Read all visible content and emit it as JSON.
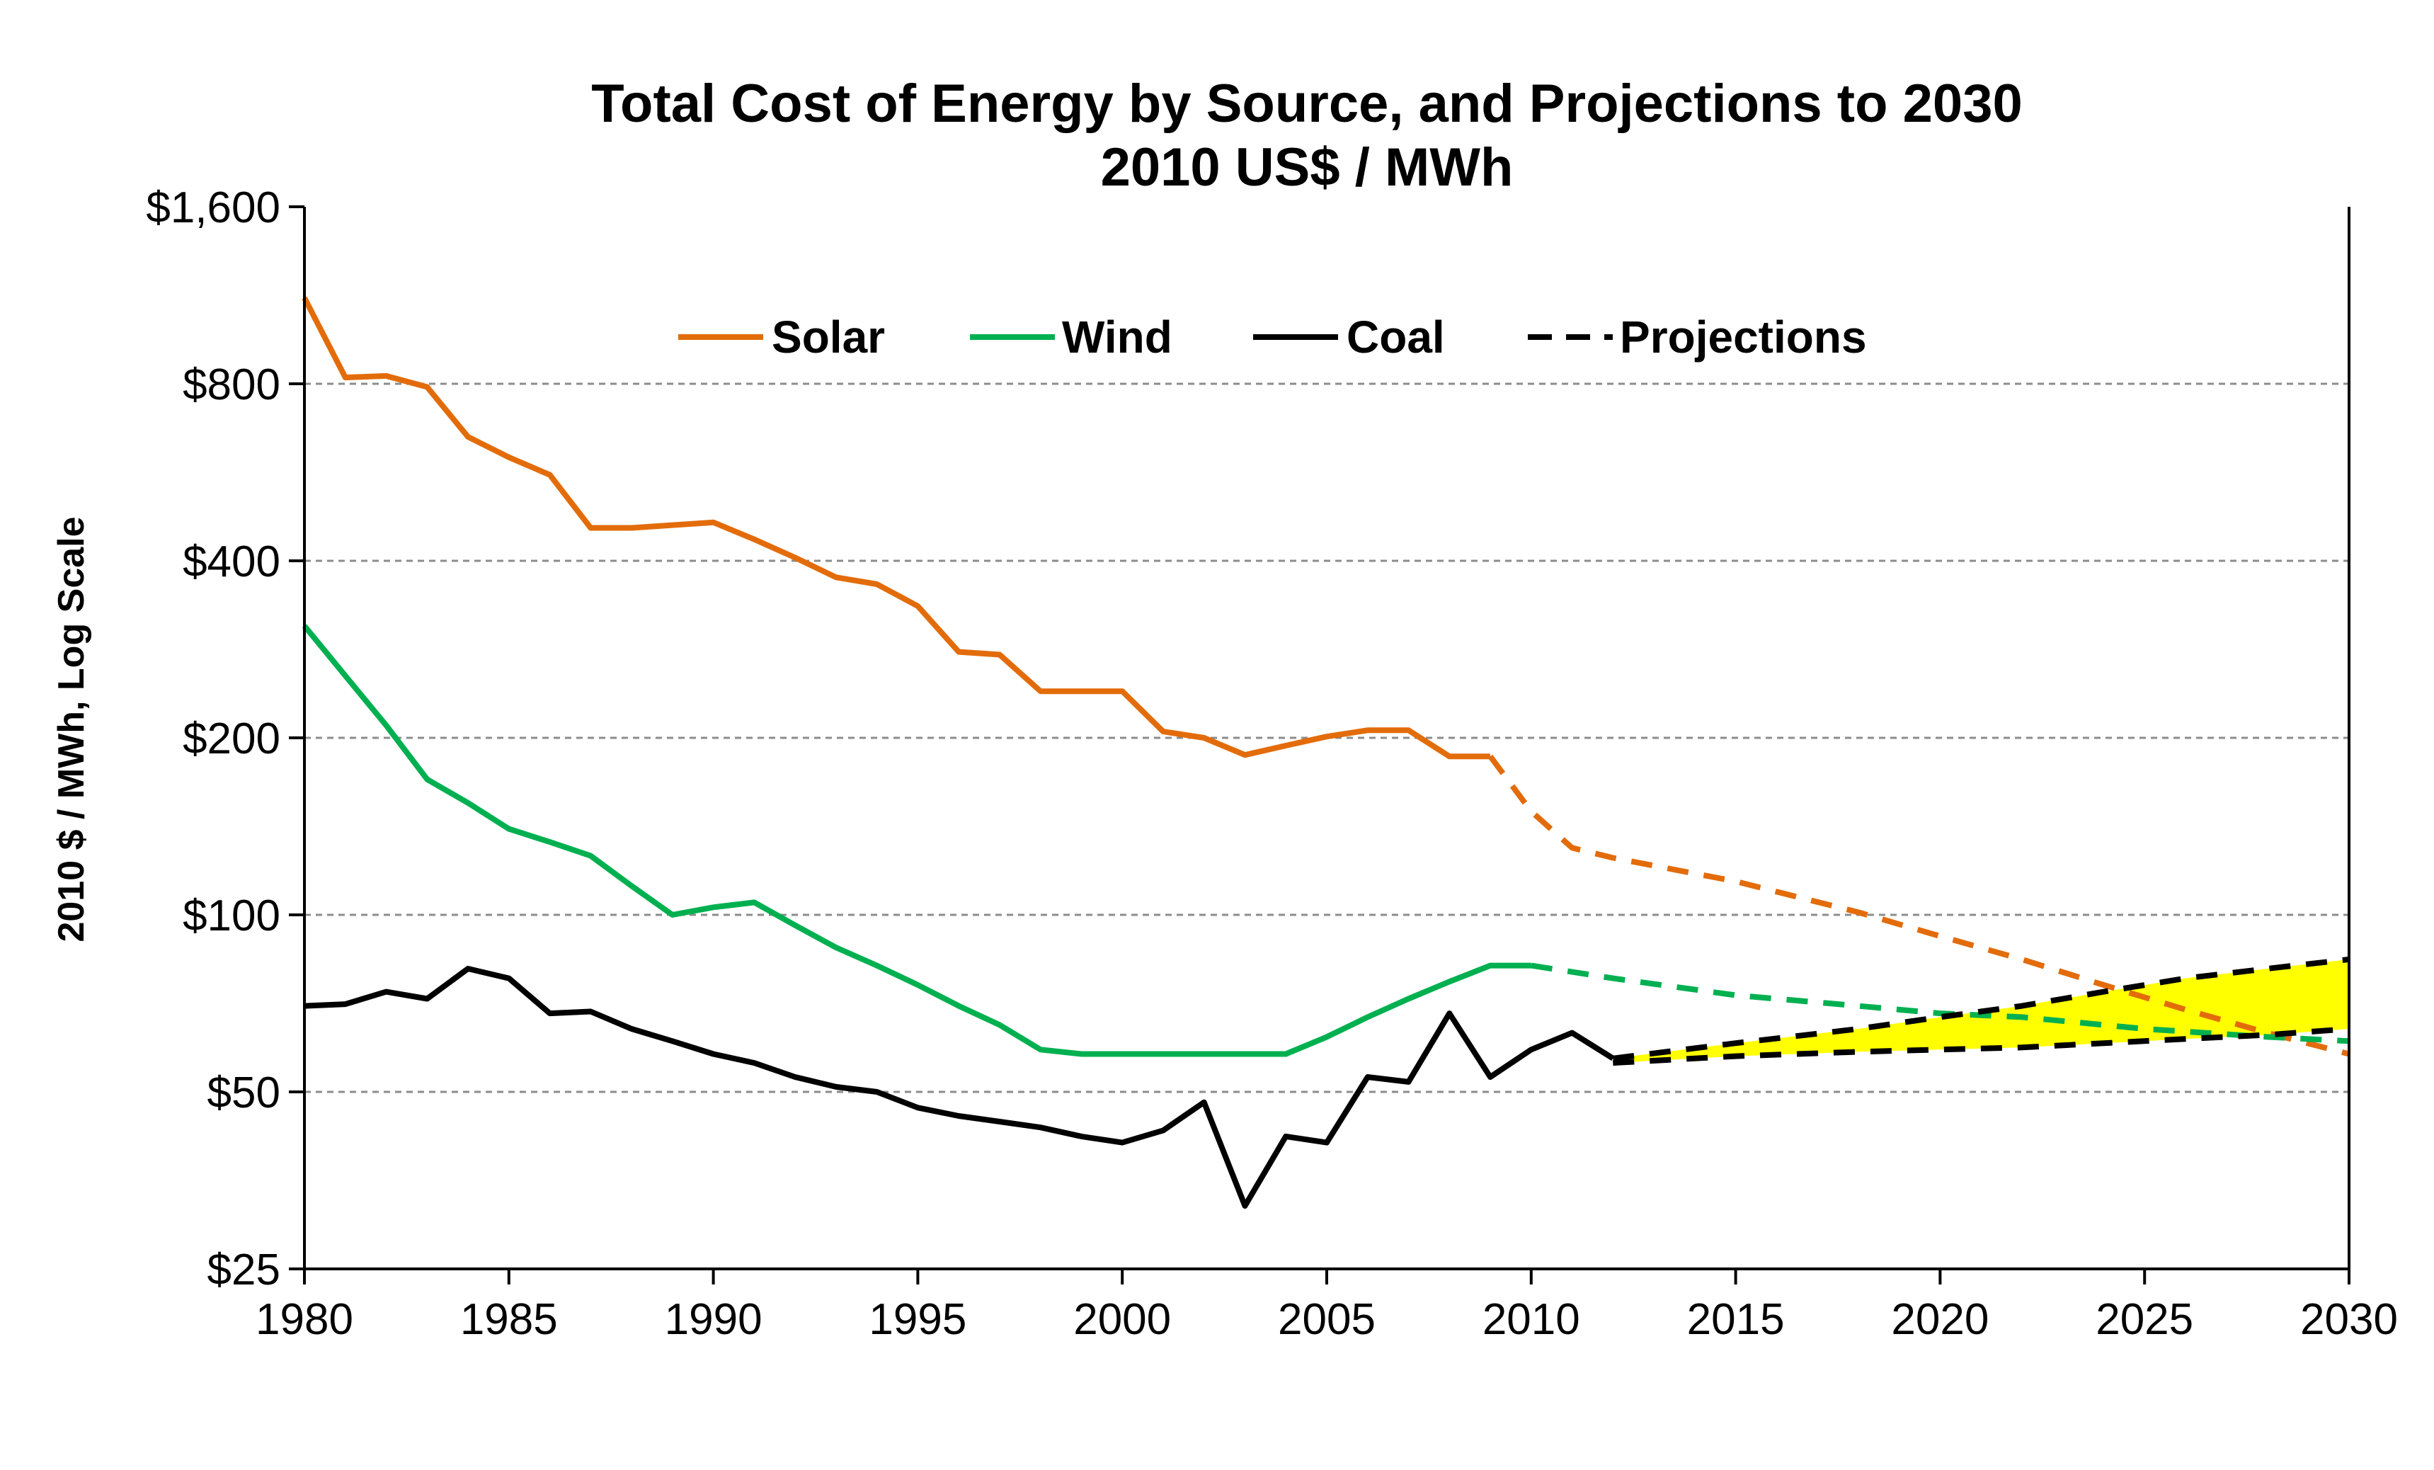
{
  "chart_data": {
    "type": "line",
    "title": "Total Cost of Energy by Source, and Projections to 2030",
    "subtitle": "2010 US$ / MWh",
    "ylabel": "2010 $ / MWh, Log Scale",
    "xlabel": "",
    "y_scale": "log",
    "xlim": [
      1980,
      2030
    ],
    "ylim": [
      25,
      1600
    ],
    "x_ticks": [
      1980,
      1985,
      1990,
      1995,
      2000,
      2005,
      2010,
      2015,
      2020,
      2025,
      2030
    ],
    "x_tick_labels": [
      "1980",
      "1985",
      "1990",
      "1995",
      "2000",
      "2005",
      "2010",
      "2015",
      "2020",
      "2025",
      "2030"
    ],
    "y_ticks": [
      25,
      50,
      100,
      200,
      400,
      800,
      1600
    ],
    "y_tick_labels": [
      "$25",
      "$50",
      "$100",
      "$200",
      "$400",
      "$800",
      "$1,600"
    ],
    "grid": "horizontal dashed",
    "legend_position": "top-center",
    "legend": [
      {
        "label": "Solar",
        "color": "#E36C0A",
        "style": "solid"
      },
      {
        "label": "Wind",
        "color": "#00B050",
        "style": "solid"
      },
      {
        "label": "Coal",
        "color": "#000000",
        "style": "solid"
      },
      {
        "label": "Projections",
        "color": "#000000",
        "style": "dashed"
      }
    ],
    "series": [
      {
        "name": "Solar",
        "color": "#E36C0A",
        "style": "solid",
        "x": [
          1980,
          1981,
          1982,
          1983,
          1984,
          1985,
          1986,
          1987,
          1988,
          1989,
          1990,
          1991,
          1992,
          1993,
          1994,
          1995,
          1996,
          1997,
          1998,
          1999,
          2000,
          2001,
          2002,
          2003,
          2004,
          2005,
          2006,
          2007,
          2008,
          2009
        ],
        "y": [
          1120,
          820,
          825,
          790,
          650,
          600,
          560,
          455,
          455,
          460,
          465,
          435,
          405,
          375,
          365,
          335,
          280,
          277,
          240,
          240,
          240,
          205,
          200,
          187,
          194,
          201,
          206,
          206,
          186,
          186
        ]
      },
      {
        "name": "Solar projection",
        "color": "#E36C0A",
        "style": "dashed",
        "x": [
          2009,
          2010,
          2011,
          2012,
          2015,
          2018,
          2020,
          2022,
          2024,
          2026,
          2028,
          2030
        ],
        "y": [
          186,
          150,
          130,
          125,
          114,
          101,
          92,
          84,
          76,
          69,
          63,
          58
        ]
      },
      {
        "name": "Wind",
        "color": "#00B050",
        "style": "solid",
        "x": [
          1980,
          1981,
          1982,
          1983,
          1984,
          1985,
          1986,
          1987,
          1988,
          1989,
          1990,
          1991,
          1992,
          1993,
          1994,
          1995,
          1996,
          1997,
          1998,
          1999,
          2000,
          2001,
          2002,
          2003,
          2004,
          2005,
          2006,
          2007,
          2008,
          2009,
          2010
        ],
        "y": [
          310,
          255,
          210,
          170,
          155,
          140,
          133,
          126,
          112,
          100,
          103,
          105,
          96,
          88,
          82,
          76,
          70,
          65,
          59,
          58,
          58,
          58,
          58,
          58,
          58,
          62,
          67,
          72,
          77,
          82,
          82
        ]
      },
      {
        "name": "Wind projection",
        "color": "#00B050",
        "style": "dashed",
        "x": [
          2010,
          2012,
          2015,
          2018,
          2020,
          2022,
          2025,
          2028,
          2030
        ],
        "y": [
          82,
          78,
          73,
          70,
          68,
          67,
          64,
          62,
          61
        ]
      },
      {
        "name": "Coal",
        "color": "#000000",
        "style": "solid",
        "x": [
          1980,
          1981,
          1982,
          1983,
          1984,
          1985,
          1986,
          1987,
          1988,
          1989,
          1990,
          1991,
          1992,
          1993,
          1994,
          1995,
          1996,
          1997,
          1998,
          1999,
          2000,
          2001,
          2002,
          2003,
          2004,
          2005,
          2006,
          2007,
          2008,
          2009,
          2010,
          2011,
          2012
        ],
        "y": [
          70,
          70.5,
          74,
          72,
          81,
          78,
          68,
          68.5,
          64,
          61,
          58,
          56,
          53,
          51,
          50,
          47,
          45.5,
          44.5,
          43.5,
          42,
          41,
          43,
          48,
          32,
          42,
          41,
          53,
          52,
          68,
          53,
          59,
          63,
          57
        ]
      },
      {
        "name": "Projection upper",
        "color": "#000000",
        "style": "dashed",
        "x": [
          2012,
          2015,
          2018,
          2020,
          2022,
          2024,
          2026,
          2028,
          2030
        ],
        "y": [
          57,
          60.5,
          64,
          67,
          70,
          74,
          78,
          81,
          84
        ]
      },
      {
        "name": "Projection lower",
        "color": "#000000",
        "style": "dashed",
        "x": [
          2012,
          2015,
          2018,
          2020,
          2022,
          2024,
          2026,
          2028,
          2030
        ],
        "y": [
          56,
          57.5,
          58.5,
          59,
          59.5,
          60.5,
          61.5,
          62.5,
          64
        ]
      }
    ],
    "projection_band": {
      "color": "#FFFF00",
      "upper": "Projection upper",
      "lower": "Projection lower"
    }
  }
}
